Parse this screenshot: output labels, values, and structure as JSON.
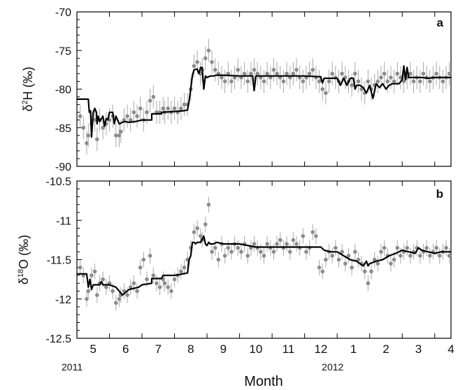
{
  "chart_data": [
    {
      "type": "scatter",
      "panel_label": "a",
      "ylabel_main": "δ",
      "ylabel_sup": "2",
      "ylabel_rest": "H (‰)",
      "ylim": [
        -90,
        -70
      ],
      "yticks": [
        -70,
        -75,
        -80,
        -85,
        -90
      ],
      "ytick_labels": [
        "-70",
        "-75",
        "-80",
        "-85",
        "-90"
      ],
      "grid": false,
      "series": [
        {
          "kind": "points_with_error",
          "x": [
            0.1,
            0.2,
            0.3,
            0.35,
            0.45,
            0.55,
            0.62,
            0.7,
            0.8,
            0.9,
            1.0,
            1.1,
            1.2,
            1.3,
            1.35,
            1.45,
            1.55,
            1.65,
            1.75,
            1.85,
            1.95,
            2.05,
            2.15,
            2.25,
            2.35,
            2.45,
            2.55,
            2.65,
            2.7,
            2.8,
            2.9,
            3.0,
            3.1,
            3.2,
            3.3,
            3.4,
            3.5,
            3.6,
            3.7,
            3.8,
            3.85,
            3.95,
            4.05,
            4.15,
            4.25,
            4.35,
            4.45,
            4.55,
            4.65,
            4.75,
            4.85,
            4.95,
            5.05,
            5.15,
            5.25,
            5.35,
            5.45,
            5.55,
            5.65,
            5.75,
            5.85,
            5.95,
            6.05,
            6.15,
            6.25,
            6.35,
            6.45,
            6.55,
            6.65,
            6.75,
            6.85,
            6.95,
            7.05,
            7.15,
            7.25,
            7.35,
            7.45,
            7.55,
            7.65,
            7.75,
            7.85,
            7.95,
            8.05,
            8.15,
            8.25,
            8.35,
            8.45,
            8.55,
            8.65,
            8.75,
            8.85,
            8.95,
            9.05,
            9.15,
            9.25,
            9.35,
            9.45,
            9.55,
            9.65,
            9.75,
            9.85,
            9.95,
            10.05,
            10.15,
            10.25,
            10.35,
            10.45,
            10.55,
            10.65,
            10.75,
            10.85,
            10.95,
            11.05,
            11.15,
            11.25,
            11.35,
            11.45
          ],
          "y": [
            -83.5,
            -85,
            -87,
            -86,
            -84.5,
            -84,
            -86.5,
            -84,
            -85,
            -84.5,
            -84,
            -83.5,
            -86,
            -86,
            -85.5,
            -84,
            -83.5,
            -84,
            -83,
            -83.5,
            -82.5,
            -84,
            -83,
            -81.5,
            -81,
            -83,
            -83,
            -82.5,
            -83,
            -82.5,
            -83,
            -82.5,
            -83,
            -82.5,
            -82,
            -82,
            -80,
            -77,
            -76.5,
            -78,
            -77.5,
            -76,
            -75,
            -76.5,
            -77.5,
            -78,
            -78.5,
            -79,
            -78,
            -79,
            -78.5,
            -77.5,
            -78.5,
            -78,
            -79,
            -78,
            -77.5,
            -78,
            -78.5,
            -79,
            -78,
            -78.5,
            -77.5,
            -78,
            -78.5,
            -79,
            -78,
            -78.5,
            -78,
            -77.5,
            -78.5,
            -79,
            -78.5,
            -78,
            -77.5,
            -78.5,
            -79,
            -80,
            -80.5,
            -79,
            -78,
            -78.5,
            -79,
            -78,
            -78.5,
            -79,
            -79.5,
            -78,
            -79,
            -80,
            -80.5,
            -79,
            -80,
            -79.5,
            -79,
            -78.5,
            -78,
            -79,
            -78.5,
            -79,
            -78,
            -78.5,
            -79,
            -78.5,
            -78,
            -79,
            -78.5,
            -79,
            -78,
            -78.5,
            -79,
            -78.5,
            -78,
            -78.5,
            -79,
            -78.5,
            -78
          ],
          "err": 1.5
        },
        {
          "kind": "model_line",
          "x": [
            0.0,
            0.35,
            0.38,
            0.42,
            0.45,
            0.5,
            0.55,
            0.6,
            0.62,
            0.65,
            0.7,
            0.8,
            0.85,
            0.9,
            0.95,
            1.0,
            1.1,
            1.15,
            1.2,
            1.3,
            1.45,
            1.6,
            1.8,
            2.0,
            2.3,
            2.3,
            2.6,
            2.6,
            3.0,
            3.3,
            3.4,
            3.45,
            3.5,
            3.55,
            3.6,
            3.7,
            3.75,
            3.8,
            3.85,
            3.9,
            3.95,
            4.0,
            4.1,
            4.2,
            4.3,
            4.5,
            5.0,
            5.4,
            5.45,
            5.5,
            6.0,
            6.5,
            7.0,
            7.5,
            7.5,
            7.55,
            7.6,
            7.7,
            7.8,
            7.9,
            8.0,
            8.1,
            8.2,
            8.3,
            8.4,
            8.5,
            8.55,
            8.6,
            8.7,
            8.8,
            8.9,
            9.0,
            9.1,
            9.2,
            9.3,
            9.4,
            9.5,
            9.6,
            9.7,
            9.8,
            9.9,
            10.0,
            10.05,
            10.1,
            10.15,
            10.2,
            10.4,
            10.6,
            10.8,
            11.0,
            11.2,
            11.4,
            11.5
          ],
          "y": [
            -81.3,
            -81.3,
            -83,
            -82.8,
            -86.2,
            -83,
            -82.5,
            -83,
            -84.5,
            -83.5,
            -84.2,
            -83.5,
            -84.8,
            -83.8,
            -84,
            -83,
            -83,
            -84.5,
            -83.5,
            -84.5,
            -84.2,
            -84.3,
            -84.2,
            -84,
            -84,
            -83.2,
            -83.2,
            -83,
            -82.9,
            -82.8,
            -82.7,
            -81.5,
            -80,
            -78.2,
            -77.5,
            -77.4,
            -78,
            -77.2,
            -77.2,
            -80,
            -78.3,
            -78.5,
            -78.3,
            -78.3,
            -78.2,
            -78.2,
            -78.3,
            -78.3,
            -80.2,
            -78.3,
            -78.3,
            -78.3,
            -78.3,
            -78.4,
            -78.6,
            -79.2,
            -78.6,
            -78.6,
            -78.6,
            -78.6,
            -78.6,
            -79.5,
            -78.6,
            -79.5,
            -78.6,
            -78.6,
            -80,
            -79.5,
            -79.5,
            -79.8,
            -80.5,
            -79.5,
            -81.2,
            -79.3,
            -79.8,
            -79.3,
            -80,
            -79.5,
            -79.3,
            -79.3,
            -79.3,
            -78.8,
            -77,
            -78.8,
            -77.2,
            -78.5,
            -78.5,
            -78.5,
            -78.6,
            -78.5,
            -78.5,
            -78.5,
            -78.5
          ]
        }
      ]
    },
    {
      "type": "scatter",
      "panel_label": "b",
      "ylabel_main": "δ",
      "ylabel_sup": "18",
      "ylabel_rest": "O (‰)",
      "ylim": [
        -12.5,
        -10.5
      ],
      "yticks": [
        -10.5,
        -11,
        -11.5,
        -12,
        -12.5
      ],
      "ytick_labels": [
        "-10.5",
        "-11",
        "-11.5",
        "-12",
        "-12.5"
      ],
      "grid": false,
      "series": [
        {
          "kind": "points_with_error",
          "x": [
            0.1,
            0.2,
            0.3,
            0.35,
            0.45,
            0.55,
            0.62,
            0.7,
            0.8,
            0.9,
            1.0,
            1.1,
            1.2,
            1.3,
            1.35,
            1.45,
            1.55,
            1.65,
            1.75,
            1.85,
            1.95,
            2.05,
            2.15,
            2.25,
            2.35,
            2.45,
            2.55,
            2.65,
            2.7,
            2.8,
            2.9,
            3.0,
            3.1,
            3.2,
            3.3,
            3.4,
            3.5,
            3.6,
            3.7,
            3.8,
            3.85,
            3.95,
            4.05,
            4.15,
            4.25,
            4.35,
            4.45,
            4.55,
            4.65,
            4.75,
            4.85,
            4.95,
            5.05,
            5.15,
            5.25,
            5.35,
            5.45,
            5.55,
            5.65,
            5.75,
            5.85,
            5.95,
            6.05,
            6.15,
            6.25,
            6.35,
            6.45,
            6.55,
            6.65,
            6.75,
            6.85,
            6.95,
            7.05,
            7.15,
            7.25,
            7.35,
            7.45,
            7.55,
            7.65,
            7.75,
            7.85,
            7.95,
            8.05,
            8.15,
            8.25,
            8.35,
            8.45,
            8.55,
            8.65,
            8.75,
            8.85,
            8.95,
            9.05,
            9.15,
            9.25,
            9.35,
            9.45,
            9.55,
            9.65,
            9.75,
            9.85,
            9.95,
            10.05,
            10.15,
            10.25,
            10.35,
            10.45,
            10.55,
            10.65,
            10.75,
            10.85,
            10.95,
            11.05,
            11.15,
            11.25,
            11.35,
            11.45
          ],
          "y": [
            -11.6,
            -11.7,
            -12,
            -11.9,
            -11.7,
            -11.65,
            -11.95,
            -11.8,
            -11.75,
            -11.85,
            -11.8,
            -11.9,
            -12.05,
            -12,
            -11.95,
            -11.9,
            -11.95,
            -11.85,
            -11.8,
            -11.9,
            -11.6,
            -11.5,
            -11.75,
            -11.45,
            -11.7,
            -11.8,
            -11.85,
            -11.75,
            -11.8,
            -11.85,
            -11.9,
            -11.75,
            -11.7,
            -11.65,
            -11.6,
            -11.5,
            -11.35,
            -11.15,
            -11.1,
            -11.2,
            -11.25,
            -11.05,
            -10.8,
            -11.4,
            -11.35,
            -11.5,
            -11.3,
            -11.45,
            -11.35,
            -11.4,
            -11.3,
            -11.35,
            -11.4,
            -11.3,
            -11.45,
            -11.35,
            -11.3,
            -11.35,
            -11.4,
            -11.45,
            -11.3,
            -11.35,
            -11.4,
            -11.3,
            -11.25,
            -11.35,
            -11.3,
            -11.4,
            -11.25,
            -11.3,
            -11.35,
            -11.2,
            -11.4,
            -11.35,
            -11.15,
            -11.2,
            -11.6,
            -11.65,
            -11.5,
            -11.4,
            -11.45,
            -11.35,
            -11.5,
            -11.4,
            -11.55,
            -11.45,
            -11.6,
            -11.4,
            -11.5,
            -11.55,
            -11.65,
            -11.8,
            -11.65,
            -11.5,
            -11.55,
            -11.4,
            -11.35,
            -11.45,
            -11.55,
            -11.5,
            -11.35,
            -11.45,
            -11.4,
            -11.35,
            -11.45,
            -11.4,
            -11.35,
            -11.45,
            -11.4,
            -11.35,
            -11.45,
            -11.4,
            -11.35,
            -11.45,
            -11.4,
            -11.35,
            -11.45
          ],
          "err": 0.1
        },
        {
          "kind": "model_line",
          "x": [
            0.0,
            0.3,
            0.35,
            0.4,
            0.45,
            0.5,
            0.7,
            0.75,
            0.8,
            1.0,
            1.2,
            1.3,
            1.4,
            1.6,
            1.9,
            2.0,
            2.3,
            2.3,
            2.6,
            2.65,
            3.0,
            3.4,
            3.45,
            3.5,
            3.55,
            3.6,
            3.65,
            3.7,
            3.8,
            3.9,
            3.95,
            4.0,
            4.05,
            4.1,
            4.2,
            4.3,
            4.5,
            5.0,
            5.5,
            6.0,
            6.5,
            7.0,
            7.5,
            7.55,
            7.6,
            7.8,
            8.0,
            8.2,
            8.4,
            8.6,
            8.7,
            8.8,
            8.9,
            8.95,
            9.0,
            9.2,
            9.4,
            9.6,
            9.8,
            10.0,
            10.2,
            10.4,
            10.5,
            10.6,
            10.8,
            11.0,
            11.2,
            11.4,
            11.5
          ],
          "y": [
            -11.68,
            -11.68,
            -11.85,
            -11.75,
            -11.88,
            -11.82,
            -11.82,
            -11.78,
            -11.82,
            -11.82,
            -11.85,
            -11.9,
            -11.95,
            -11.88,
            -11.85,
            -11.82,
            -11.8,
            -11.74,
            -11.74,
            -11.7,
            -11.7,
            -11.67,
            -11.5,
            -11.45,
            -11.28,
            -11.28,
            -11.3,
            -11.28,
            -11.28,
            -11.2,
            -11.3,
            -11.32,
            -11.28,
            -11.3,
            -11.3,
            -11.28,
            -11.3,
            -11.3,
            -11.34,
            -11.34,
            -11.34,
            -11.34,
            -11.34,
            -11.36,
            -11.38,
            -11.4,
            -11.4,
            -11.45,
            -11.5,
            -11.52,
            -11.55,
            -11.58,
            -11.52,
            -11.58,
            -11.55,
            -11.52,
            -11.5,
            -11.45,
            -11.42,
            -11.38,
            -11.4,
            -11.42,
            -11.35,
            -11.38,
            -11.4,
            -11.42,
            -11.4,
            -11.4,
            -11.4
          ]
        }
      ]
    }
  ],
  "x_axis": {
    "xlim": [
      0,
      11.5
    ],
    "tick_labels": [
      "5",
      "6",
      "7",
      "8",
      "9",
      "10",
      "11",
      "12",
      "1",
      "2",
      "3",
      "4"
    ],
    "xlabel": "Month",
    "years": [
      {
        "label": "2011",
        "at": 0
      },
      {
        "label": "2012",
        "at": 8
      }
    ]
  },
  "colors": {
    "points": "#8c8c8c",
    "error_bars": "#a9a9a9",
    "model_line": "#000000"
  }
}
